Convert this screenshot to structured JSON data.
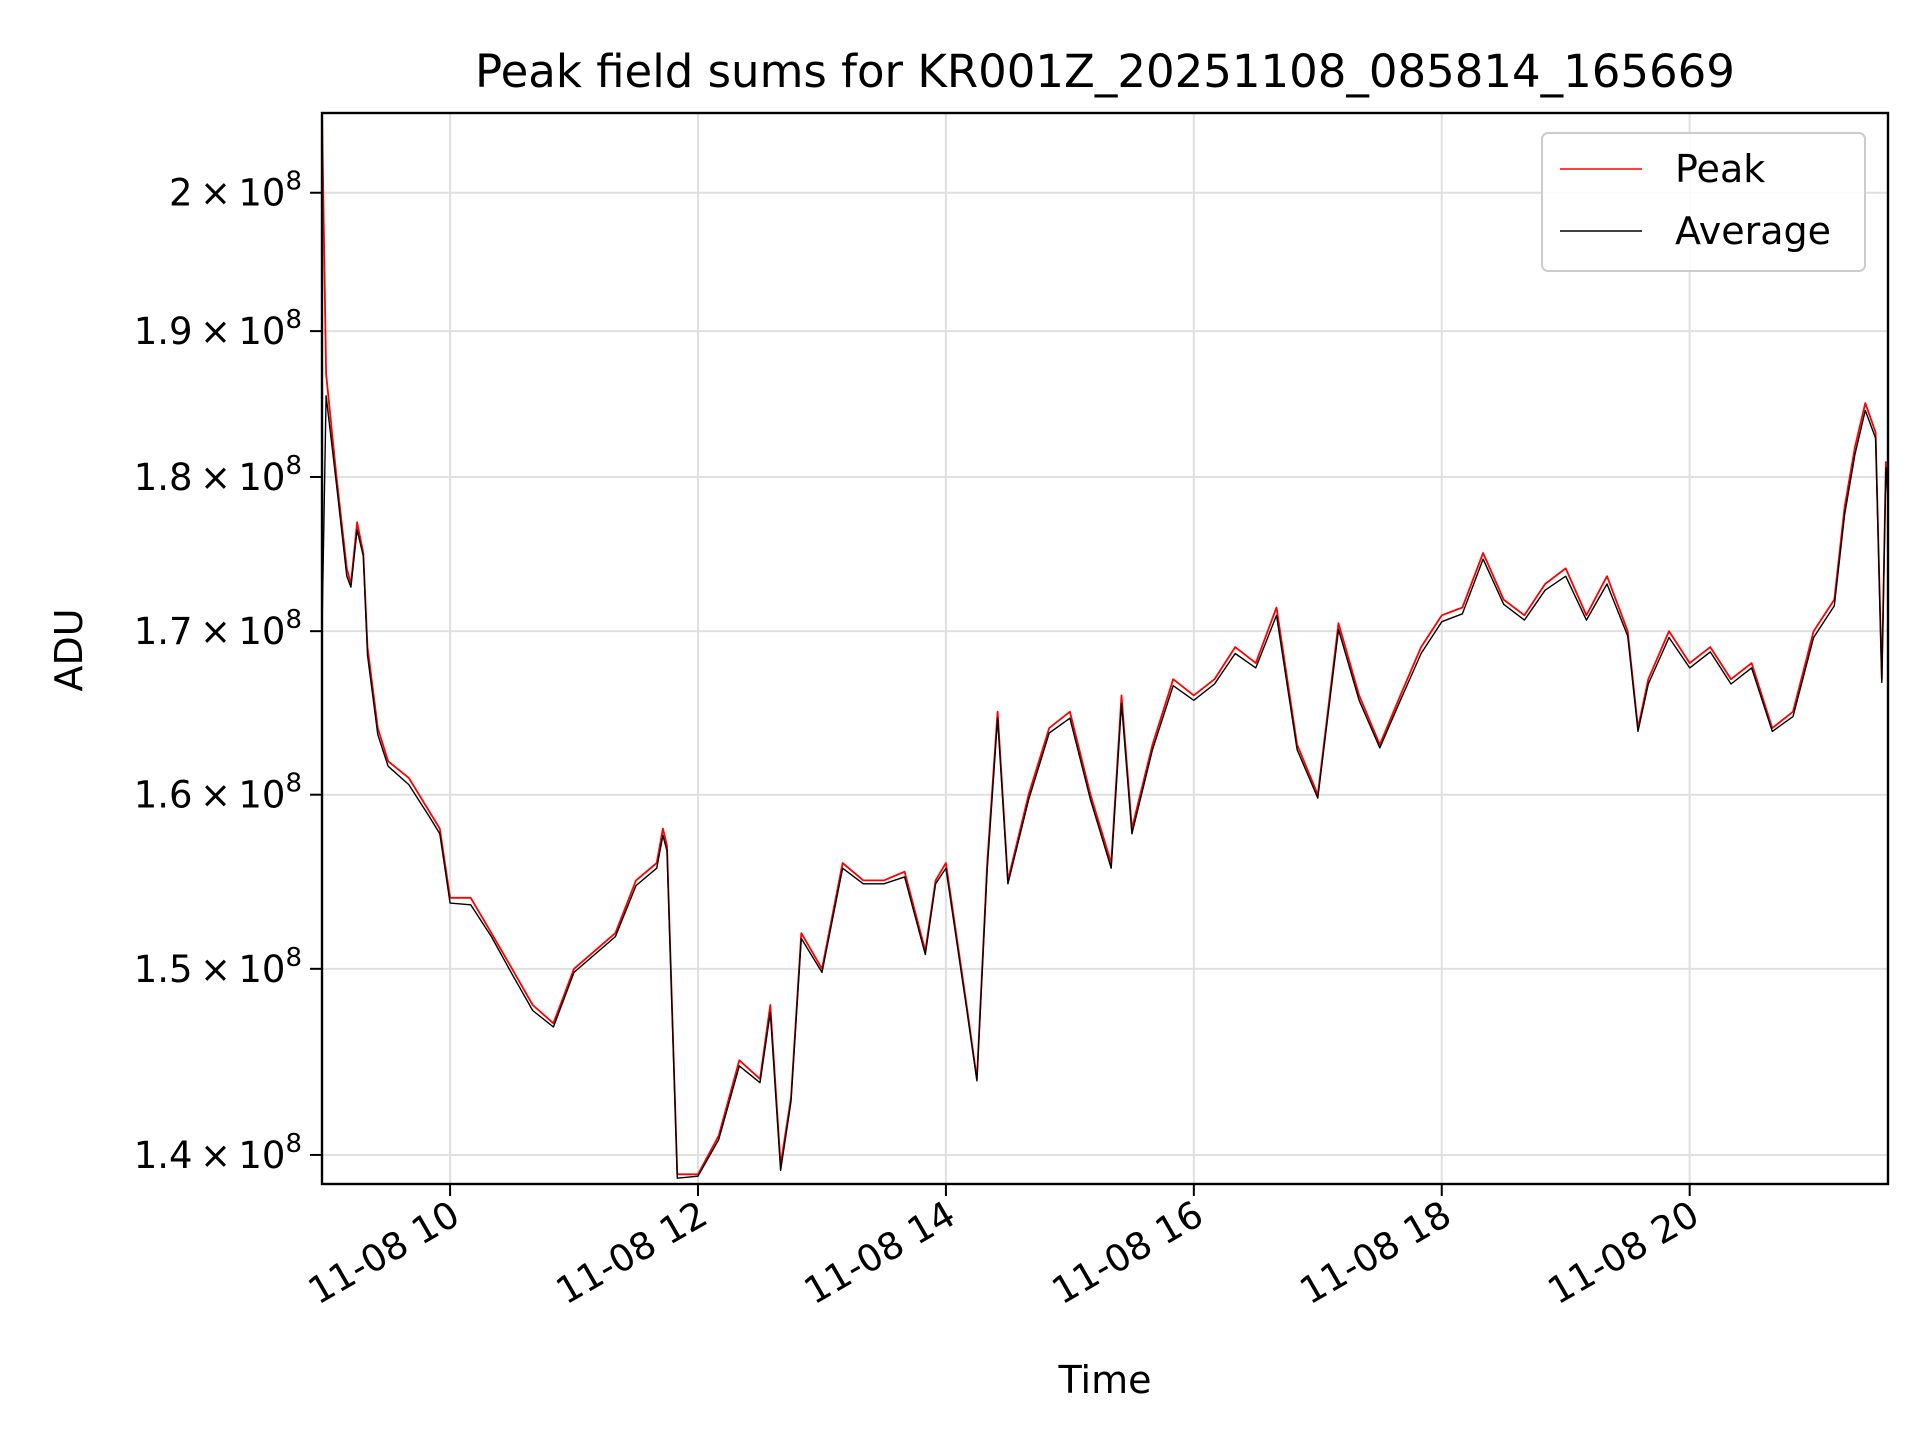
{
  "chart_data": {
    "type": "line",
    "title": "Peak field sums for KR001Z_20251108_085814_165669",
    "xlabel": "Time",
    "ylabel": "ADU",
    "y_scale": "log",
    "grid": true,
    "legend_position": "top-right",
    "xlim": [
      "11-08 08:58",
      "11-08 21:36"
    ],
    "ylim": [
      138500000,
      206000000
    ],
    "x_ticks": [
      {
        "t": "11-08 10:00",
        "label": "11-08 10"
      },
      {
        "t": "11-08 12:00",
        "label": "11-08 12"
      },
      {
        "t": "11-08 14:00",
        "label": "11-08 14"
      },
      {
        "t": "11-08 16:00",
        "label": "11-08 16"
      },
      {
        "t": "11-08 18:00",
        "label": "11-08 18"
      },
      {
        "t": "11-08 20:00",
        "label": "11-08 20"
      }
    ],
    "y_ticks": [
      {
        "v": 140000000,
        "mant": "1.4",
        "exp": "8"
      },
      {
        "v": 150000000,
        "mant": "1.5",
        "exp": "8"
      },
      {
        "v": 160000000,
        "mant": "1.6",
        "exp": "8"
      },
      {
        "v": 170000000,
        "mant": "1.7",
        "exp": "8"
      },
      {
        "v": 180000000,
        "mant": "1.8",
        "exp": "8"
      },
      {
        "v": 190000000,
        "mant": "1.9",
        "exp": "8"
      },
      {
        "v": 200000000,
        "mant": "2",
        "exp": "8"
      }
    ],
    "series": [
      {
        "name": "Peak",
        "color": "#ff0000",
        "x": [
          "11-08 08:58",
          "11-08 09:00",
          "11-08 09:05",
          "11-08 09:10",
          "11-08 09:12",
          "11-08 09:15",
          "11-08 09:18",
          "11-08 09:20",
          "11-08 09:25",
          "11-08 09:30",
          "11-08 09:40",
          "11-08 09:50",
          "11-08 09:55",
          "11-08 10:00",
          "11-08 10:10",
          "11-08 10:20",
          "11-08 10:30",
          "11-08 10:40",
          "11-08 10:50",
          "11-08 11:00",
          "11-08 11:10",
          "11-08 11:20",
          "11-08 11:30",
          "11-08 11:40",
          "11-08 11:43",
          "11-08 11:45",
          "11-08 11:50",
          "11-08 12:00",
          "11-08 12:10",
          "11-08 12:20",
          "11-08 12:30",
          "11-08 12:35",
          "11-08 12:40",
          "11-08 12:45",
          "11-08 12:50",
          "11-08 13:00",
          "11-08 13:10",
          "11-08 13:20",
          "11-08 13:30",
          "11-08 13:40",
          "11-08 13:50",
          "11-08 13:55",
          "11-08 14:00",
          "11-08 14:10",
          "11-08 14:15",
          "11-08 14:20",
          "11-08 14:25",
          "11-08 14:30",
          "11-08 14:40",
          "11-08 14:50",
          "11-08 15:00",
          "11-08 15:10",
          "11-08 15:20",
          "11-08 15:25",
          "11-08 15:30",
          "11-08 15:40",
          "11-08 15:50",
          "11-08 16:00",
          "11-08 16:10",
          "11-08 16:20",
          "11-08 16:30",
          "11-08 16:40",
          "11-08 16:50",
          "11-08 17:00",
          "11-08 17:10",
          "11-08 17:20",
          "11-08 17:30",
          "11-08 17:40",
          "11-08 17:50",
          "11-08 18:00",
          "11-08 18:10",
          "11-08 18:20",
          "11-08 18:30",
          "11-08 18:40",
          "11-08 18:50",
          "11-08 19:00",
          "11-08 19:10",
          "11-08 19:20",
          "11-08 19:30",
          "11-08 19:35",
          "11-08 19:40",
          "11-08 19:50",
          "11-08 20:00",
          "11-08 20:10",
          "11-08 20:20",
          "11-08 20:30",
          "11-08 20:40",
          "11-08 20:50",
          "11-08 21:00",
          "11-08 21:10",
          "11-08 21:15",
          "11-08 21:20",
          "11-08 21:25",
          "11-08 21:30",
          "11-08 21:33",
          "11-08 21:35",
          "11-08 21:36"
        ],
        "values": [
          206000000,
          187000000,
          180000000,
          174000000,
          173000000,
          177000000,
          175000000,
          169000000,
          164000000,
          162000000,
          161000000,
          159000000,
          158000000,
          154000000,
          154000000,
          152000000,
          150000000,
          148000000,
          147000000,
          150000000,
          151000000,
          152000000,
          155000000,
          156000000,
          158000000,
          157000000,
          139000000,
          139000000,
          141000000,
          145000000,
          144000000,
          148000000,
          139500000,
          143000000,
          152000000,
          150000000,
          156000000,
          155000000,
          155000000,
          155500000,
          151000000,
          155000000,
          156000000,
          148000000,
          144000000,
          156000000,
          165000000,
          155000000,
          160000000,
          164000000,
          165000000,
          160000000,
          156000000,
          166000000,
          158000000,
          163000000,
          167000000,
          166000000,
          167000000,
          169000000,
          168000000,
          171500000,
          163000000,
          160000000,
          170500000,
          166000000,
          163000000,
          166000000,
          169000000,
          171000000,
          171500000,
          175000000,
          172000000,
          171000000,
          173000000,
          174000000,
          171000000,
          173500000,
          170000000,
          164000000,
          167000000,
          170000000,
          168000000,
          169000000,
          167000000,
          168000000,
          164000000,
          165000000,
          170000000,
          172000000,
          178000000,
          182000000,
          185000000,
          183000000,
          167000000,
          181000000,
          179000000
        ]
      },
      {
        "name": "Average",
        "color": "#000000",
        "x": [
          "11-08 08:58",
          "11-08 09:00",
          "11-08 09:05",
          "11-08 09:10",
          "11-08 09:12",
          "11-08 09:15",
          "11-08 09:18",
          "11-08 09:20",
          "11-08 09:25",
          "11-08 09:30",
          "11-08 09:40",
          "11-08 09:50",
          "11-08 09:55",
          "11-08 10:00",
          "11-08 10:10",
          "11-08 10:20",
          "11-08 10:30",
          "11-08 10:40",
          "11-08 10:50",
          "11-08 11:00",
          "11-08 11:10",
          "11-08 11:20",
          "11-08 11:30",
          "11-08 11:40",
          "11-08 11:43",
          "11-08 11:45",
          "11-08 11:50",
          "11-08 12:00",
          "11-08 12:10",
          "11-08 12:20",
          "11-08 12:30",
          "11-08 12:35",
          "11-08 12:40",
          "11-08 12:45",
          "11-08 12:50",
          "11-08 13:00",
          "11-08 13:10",
          "11-08 13:20",
          "11-08 13:30",
          "11-08 13:40",
          "11-08 13:50",
          "11-08 13:55",
          "11-08 14:00",
          "11-08 14:10",
          "11-08 14:15",
          "11-08 14:20",
          "11-08 14:25",
          "11-08 14:30",
          "11-08 14:40",
          "11-08 14:50",
          "11-08 15:00",
          "11-08 15:10",
          "11-08 15:20",
          "11-08 15:25",
          "11-08 15:30",
          "11-08 15:40",
          "11-08 15:50",
          "11-08 16:00",
          "11-08 16:10",
          "11-08 16:20",
          "11-08 16:30",
          "11-08 16:40",
          "11-08 16:50",
          "11-08 17:00",
          "11-08 17:10",
          "11-08 17:20",
          "11-08 17:30",
          "11-08 17:40",
          "11-08 17:50",
          "11-08 18:00",
          "11-08 18:10",
          "11-08 18:20",
          "11-08 18:30",
          "11-08 18:40",
          "11-08 18:50",
          "11-08 19:00",
          "11-08 19:10",
          "11-08 19:20",
          "11-08 19:30",
          "11-08 19:35",
          "11-08 19:40",
          "11-08 19:50",
          "11-08 20:00",
          "11-08 20:10",
          "11-08 20:20",
          "11-08 20:30",
          "11-08 20:40",
          "11-08 20:50",
          "11-08 21:00",
          "11-08 21:10",
          "11-08 21:15",
          "11-08 21:20",
          "11-08 21:25",
          "11-08 21:30",
          "11-08 21:33",
          "11-08 21:35",
          "11-08 21:36"
        ],
        "values": [
          170000000,
          185500000,
          179500000,
          173500000,
          172800000,
          176500000,
          174800000,
          168500000,
          163600000,
          161700000,
          160600000,
          158700000,
          157700000,
          153700000,
          153600000,
          151800000,
          149700000,
          147700000,
          146800000,
          149800000,
          150800000,
          151800000,
          154700000,
          155700000,
          157600000,
          156700000,
          138800000,
          138900000,
          140800000,
          144700000,
          143800000,
          147600000,
          139200000,
          142800000,
          151700000,
          149800000,
          155700000,
          154800000,
          154800000,
          155200000,
          150800000,
          154800000,
          155700000,
          147800000,
          143900000,
          155600000,
          164600000,
          154800000,
          159700000,
          163700000,
          164600000,
          159700000,
          155700000,
          165500000,
          157700000,
          162700000,
          166600000,
          165700000,
          166700000,
          168600000,
          167700000,
          171000000,
          162700000,
          159800000,
          170100000,
          165700000,
          162800000,
          165700000,
          168600000,
          170600000,
          171100000,
          174600000,
          171700000,
          170700000,
          172600000,
          173500000,
          170700000,
          173000000,
          169700000,
          163800000,
          166700000,
          169600000,
          167700000,
          168700000,
          166700000,
          167700000,
          163800000,
          164700000,
          169600000,
          171600000,
          177500000,
          181500000,
          184500000,
          182600000,
          166800000,
          180600000,
          178700000
        ]
      }
    ]
  }
}
